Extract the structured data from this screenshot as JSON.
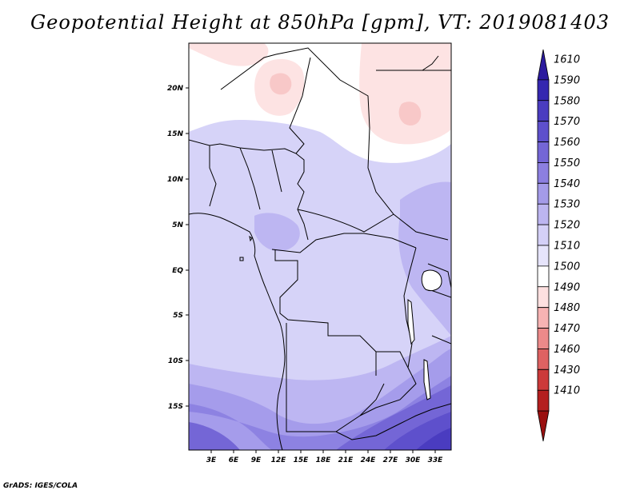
{
  "title": "Geopotential Height at 850hPa [gpm], VT: 2019081403",
  "credit": "GrADS: IGES/COLA",
  "axes": {
    "lon_ticks": [
      "3E",
      "6E",
      "9E",
      "12E",
      "15E",
      "18E",
      "21E",
      "24E",
      "27E",
      "30E",
      "33E"
    ],
    "lat_ticks": [
      "20N",
      "15N",
      "10N",
      "5N",
      "EQ",
      "5S",
      "10S",
      "15S"
    ]
  },
  "colorbar": {
    "levels": [
      "1610",
      "1590",
      "1580",
      "1570",
      "1560",
      "1550",
      "1540",
      "1530",
      "1520",
      "1510",
      "1500",
      "1490",
      "1480",
      "1470",
      "1460",
      "1430",
      "1410"
    ],
    "colors": [
      "#2b1a9e",
      "#3527b0",
      "#4a3cc0",
      "#5e50cc",
      "#7466d6",
      "#8c7fe0",
      "#a49be8",
      "#bcb5f0",
      "#d4d0f7",
      "#e6e4fb",
      "#ffffff",
      "#fde0e0",
      "#f7b3b3",
      "#ec8a8a",
      "#de6262",
      "#cc3a3a",
      "#b41f1f",
      "#9a1010"
    ]
  }
}
